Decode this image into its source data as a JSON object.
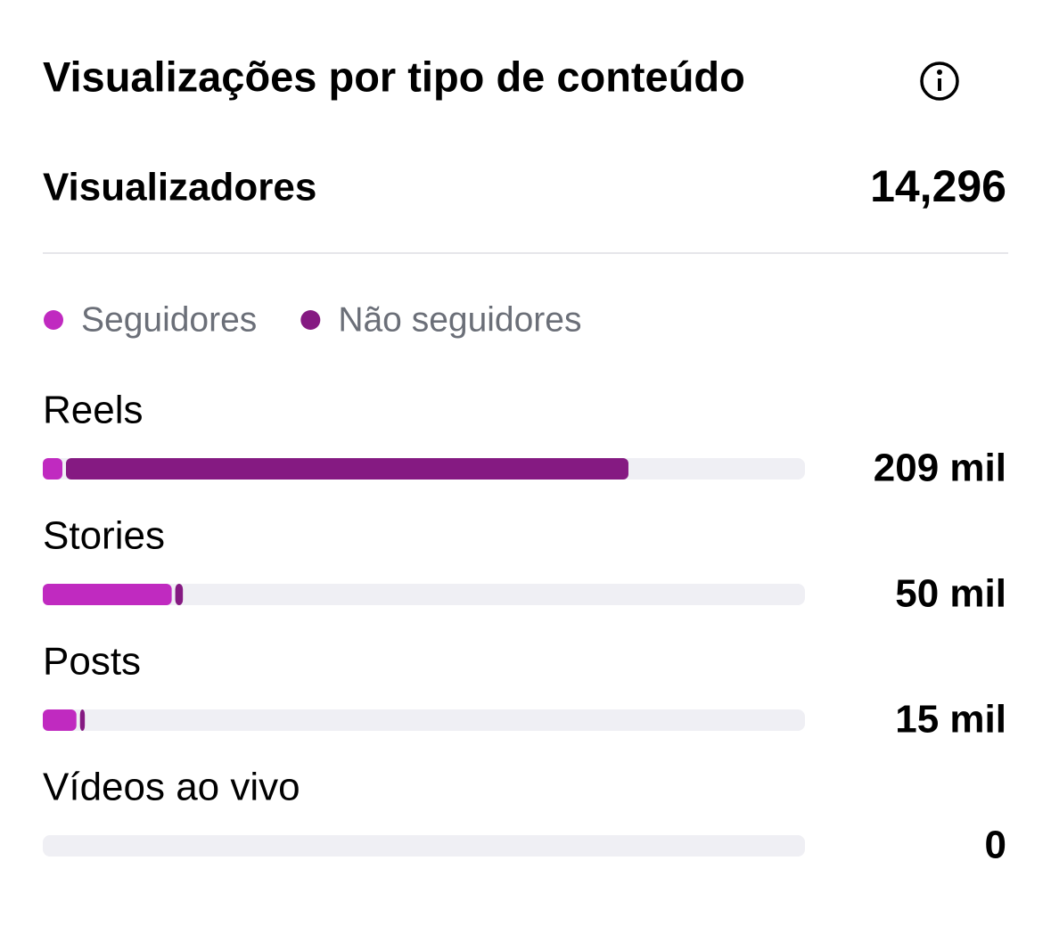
{
  "chart_data": {
    "type": "stacked-bar-horizontal",
    "title": "Visualizações por tipo de conteúdo",
    "summary_label": "Visualizadores",
    "summary_value": "14,296",
    "categories": [
      "Reels",
      "Stories",
      "Posts",
      "Vídeos ao vivo"
    ],
    "series": [
      {
        "name": "Seguidores",
        "color": "#c02ac0",
        "values": [
          7,
          46,
          12,
          0
        ]
      },
      {
        "name": "Não seguidores",
        "color": "#851a82",
        "values": [
          202,
          4,
          3,
          0
        ]
      }
    ],
    "total_labels": [
      "209 mil",
      "50 mil",
      "15 mil",
      "0"
    ],
    "xlim": [
      0,
      272
    ],
    "track_color": "#efeff4"
  }
}
